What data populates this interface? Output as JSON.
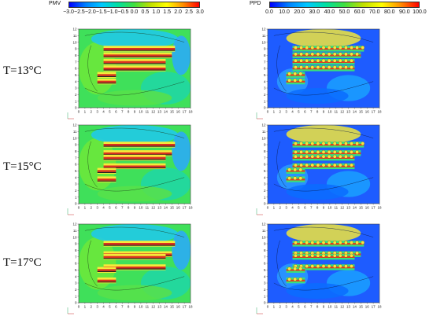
{
  "colorbars": {
    "pmv": {
      "title": "PMV",
      "ticks": [
        "−3.0",
        "−2.5",
        "−2.0",
        "−1.5",
        "−1.0",
        "−0.5",
        "0.0",
        "0.5",
        "1.0",
        "1.5",
        "2.0",
        "2.5",
        "3.0"
      ]
    },
    "ppd": {
      "title": "PPD",
      "ticks": [
        "0.0",
        "10.0",
        "20.0",
        "30.0",
        "40.0",
        "50.0",
        "60.0",
        "70.0",
        "80.0",
        "90.0",
        "100.0"
      ]
    }
  },
  "rows": [
    {
      "label": "T=13°C"
    },
    {
      "label": "T=15°C"
    },
    {
      "label": "T=17°C"
    }
  ],
  "axes": {
    "x_ticks": [
      "0",
      "1",
      "2",
      "3",
      "4",
      "5",
      "6",
      "7",
      "8",
      "9",
      "10",
      "11",
      "12",
      "13",
      "14",
      "15",
      "16",
      "17",
      "18"
    ],
    "y_ticks": [
      "0",
      "1",
      "2",
      "3",
      "4",
      "5",
      "6",
      "7",
      "8",
      "9",
      "10",
      "11",
      "12"
    ]
  },
  "colors": {
    "pmv_gradient": [
      "#0000ff",
      "#0080ff",
      "#00c8ff",
      "#00e0a0",
      "#40e040",
      "#c0e000",
      "#ffff00",
      "#ff9000",
      "#ff0000"
    ],
    "ppd_gradient": [
      "#0000ff",
      "#0080ff",
      "#00c8ff",
      "#00e0a0",
      "#40e040",
      "#c0e000",
      "#ffff00",
      "#ff9000",
      "#ff0000"
    ]
  }
}
